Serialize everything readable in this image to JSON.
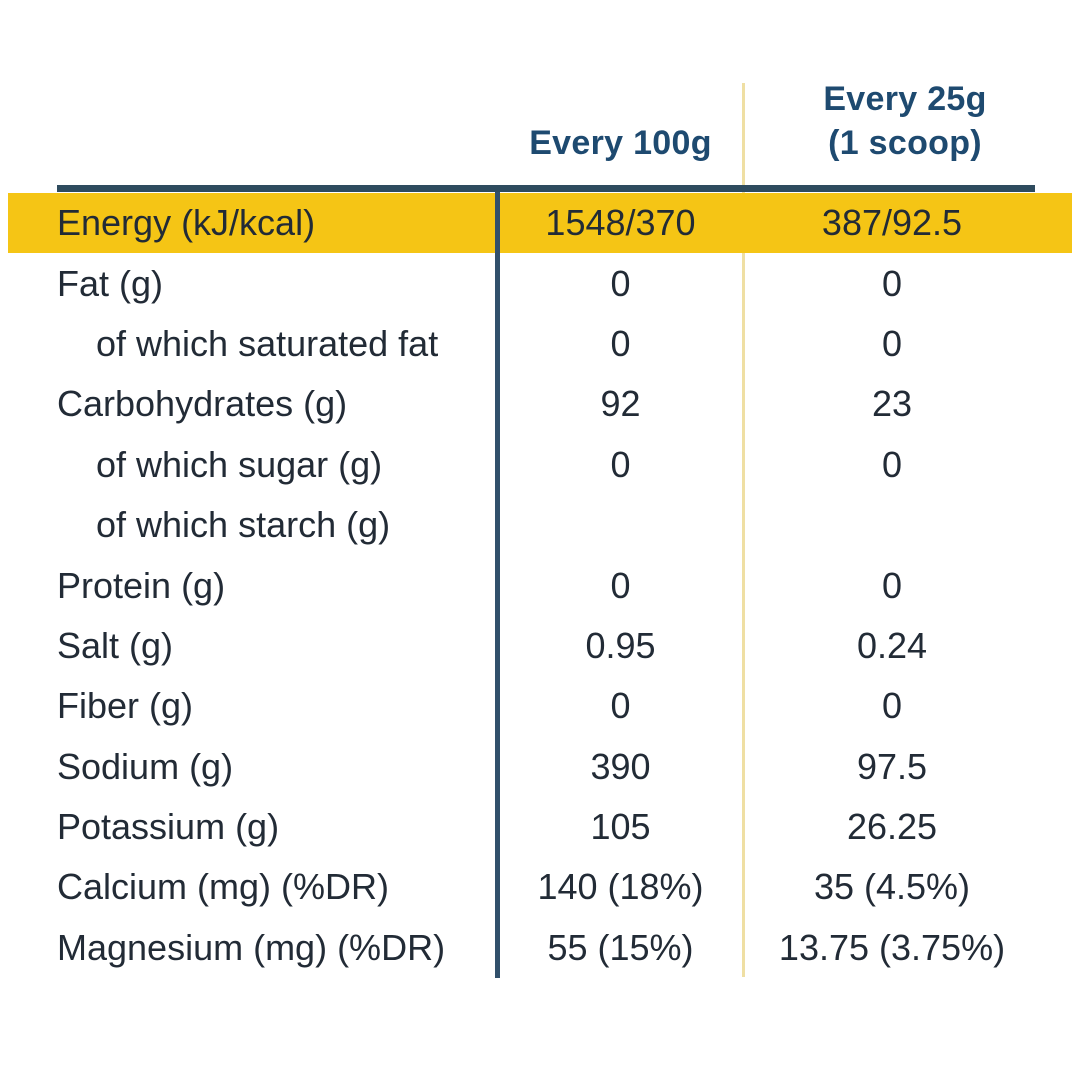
{
  "colors": {
    "highlight_band": "#F5C515",
    "header_text": "#1E4A70",
    "body_text": "#222B36",
    "navy_rule": "#2E4B5E",
    "navy_column_divider": "#31506B",
    "pale_yellow_divider": "#EFDFA3",
    "background": "#FFFFFF"
  },
  "table": {
    "columns": [
      {
        "label": "Every 100g"
      },
      {
        "label": "Every 25g",
        "sublabel": "(1 scoop)"
      }
    ],
    "rows": [
      {
        "label": "Energy (kJ/kcal)",
        "per_100g": "1548/370",
        "per_25g": "387/92.5",
        "highlight": true,
        "indent": false
      },
      {
        "label": "Fat (g)",
        "per_100g": "0",
        "per_25g": "0",
        "highlight": false,
        "indent": false
      },
      {
        "label": "of which saturated fat",
        "per_100g": "0",
        "per_25g": "0",
        "highlight": false,
        "indent": true
      },
      {
        "label": "Carbohydrates (g)",
        "per_100g": "92",
        "per_25g": "23",
        "highlight": false,
        "indent": false
      },
      {
        "label": "of which sugar (g)",
        "per_100g": "0",
        "per_25g": "0",
        "highlight": false,
        "indent": true
      },
      {
        "label": "of which starch (g)",
        "per_100g": "",
        "per_25g": "",
        "highlight": false,
        "indent": true
      },
      {
        "label": "Protein (g)",
        "per_100g": "0",
        "per_25g": "0",
        "highlight": false,
        "indent": false
      },
      {
        "label": "Salt (g)",
        "per_100g": "0.95",
        "per_25g": "0.24",
        "highlight": false,
        "indent": false
      },
      {
        "label": "Fiber (g)",
        "per_100g": "0",
        "per_25g": "0",
        "highlight": false,
        "indent": false
      },
      {
        "label": "Sodium (g)",
        "per_100g": "390",
        "per_25g": "97.5",
        "highlight": false,
        "indent": false
      },
      {
        "label": "Potassium (g)",
        "per_100g": "105",
        "per_25g": "26.25",
        "highlight": false,
        "indent": false
      },
      {
        "label": "Calcium (mg) (%DR)",
        "per_100g": "140 (18%)",
        "per_25g": "35 (4.5%)",
        "highlight": false,
        "indent": false
      },
      {
        "label": "Magnesium (mg) (%DR)",
        "per_100g": "55 (15%)",
        "per_25g": "13.75 (3.75%)",
        "highlight": false,
        "indent": false
      }
    ]
  }
}
